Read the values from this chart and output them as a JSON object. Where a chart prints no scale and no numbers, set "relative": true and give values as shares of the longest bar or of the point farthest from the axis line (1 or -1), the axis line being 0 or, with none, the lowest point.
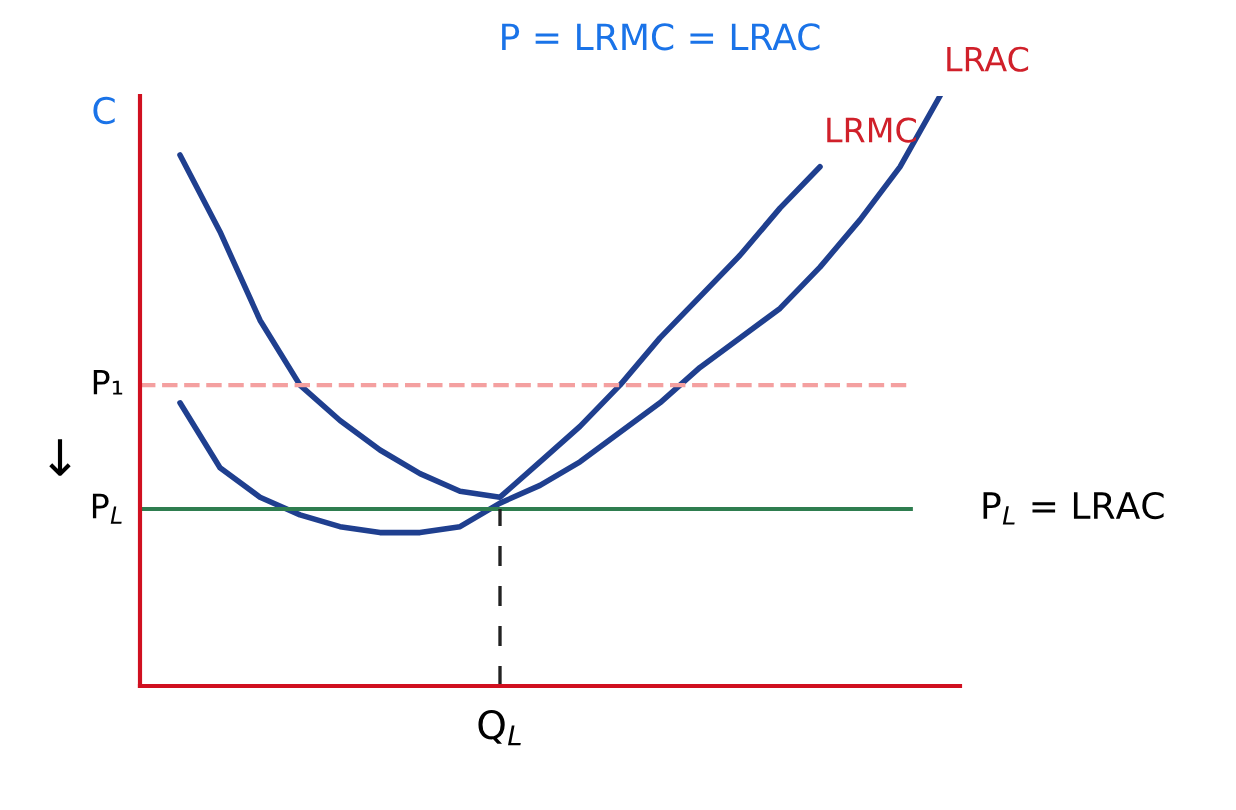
{
  "chart_data": {
    "type": "line",
    "title": "P = LRMC = LRAC",
    "ylabel": "C",
    "relative": true,
    "categories": [
      null,
      null,
      null,
      null,
      null,
      null,
      null,
      null,
      null,
      null,
      null,
      null,
      null,
      null,
      null,
      null,
      null,
      null,
      null,
      null
    ],
    "series": [
      {
        "name": "LRMC",
        "color": "#1f3f8f",
        "values": [
          0.9,
          0.77,
          0.62,
          0.51,
          0.45,
          0.4,
          0.36,
          0.33,
          0.32,
          0.38,
          0.44,
          0.51,
          0.59,
          0.66,
          0.73,
          0.81,
          0.88,
          null,
          null,
          null
        ]
      },
      {
        "name": "LRAC",
        "color": "#1f3f8f",
        "values": [
          0.48,
          0.37,
          0.32,
          0.29,
          0.27,
          0.26,
          0.26,
          0.27,
          0.31,
          0.34,
          0.38,
          0.43,
          0.48,
          0.54,
          0.59,
          0.64,
          0.71,
          0.79,
          0.88,
          1.0
        ]
      }
    ],
    "ref_lines": [
      {
        "axis": "y",
        "value": 0.51,
        "label": "P₁",
        "color": "#f4a0a0",
        "line_style": "dashed"
      },
      {
        "axis": "y",
        "value": 0.3,
        "label": "P$_{L}$",
        "color": "#2e7d4f",
        "line_style": "solid"
      }
    ],
    "annotations": [
      "P$_{L}$ = LRAC",
      "↓",
      "Q$_{L}$"
    ],
    "marker": "none",
    "line_style": "solid",
    "legend": false,
    "grid": false
  }
}
